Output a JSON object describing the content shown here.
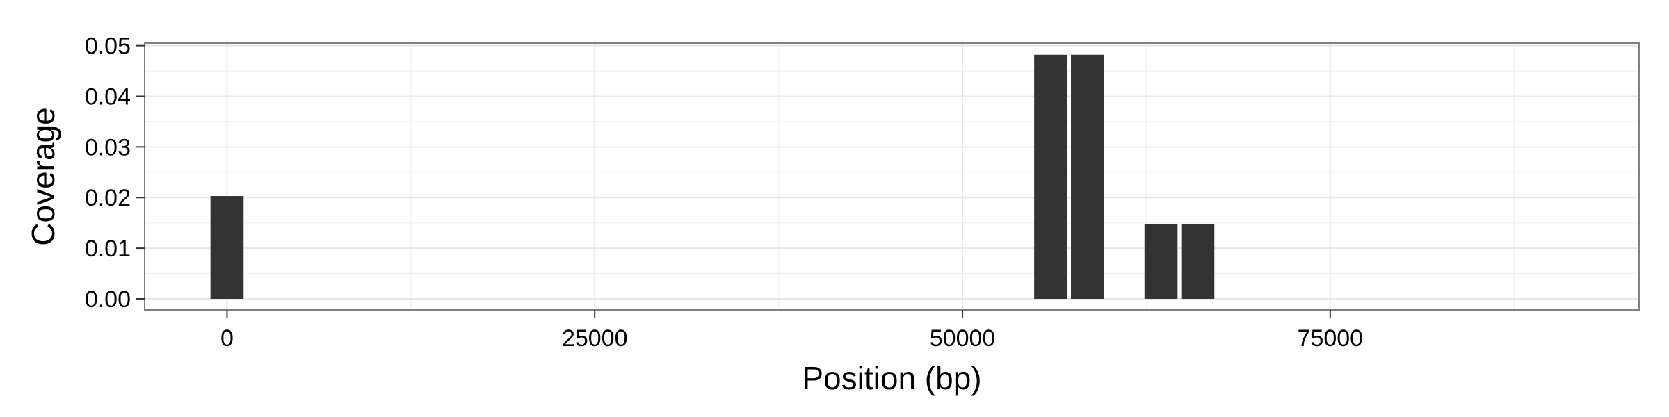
{
  "chart_data": {
    "type": "bar",
    "title": "",
    "xlabel": "Position (bp)",
    "ylabel": "Coverage",
    "xlim": [
      -5600,
      96000
    ],
    "ylim": [
      -0.0022,
      0.0505
    ],
    "x_ticks": [
      0,
      25000,
      50000,
      75000
    ],
    "x_tick_labels": [
      "0",
      "25000",
      "50000",
      "75000"
    ],
    "y_ticks": [
      0,
      0.01,
      0.02,
      0.03,
      0.04,
      0.05
    ],
    "y_tick_labels": [
      "0.00",
      "0.01",
      "0.02",
      "0.03",
      "0.04",
      "0.05"
    ],
    "bar_width": 2250,
    "bars": [
      {
        "x": 0,
        "value": 0.0203
      },
      {
        "x": 56000,
        "value": 0.0482
      },
      {
        "x": 58500,
        "value": 0.0482
      },
      {
        "x": 63500,
        "value": 0.0148
      },
      {
        "x": 66000,
        "value": 0.0148
      }
    ],
    "grid": true,
    "legend": "none",
    "colors": {
      "bar": "#333333",
      "panel_background": "#ffffff",
      "grid_major": "#e6e6e6",
      "grid_minor": "#f3f3f3",
      "panel_border": "#808080"
    }
  }
}
